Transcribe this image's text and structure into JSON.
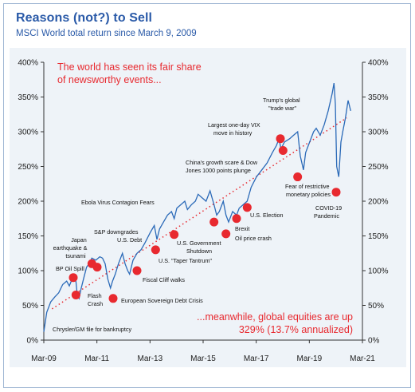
{
  "header": {
    "title": "Reasons (not?) to Sell",
    "subtitle": "MSCI World total return since March 9, 2009"
  },
  "colors": {
    "line": "#2b6ab8",
    "event": "#e8292f",
    "title": "#2a5aa8",
    "trend": "#e8292f",
    "background": "#eef3f8"
  },
  "callouts": {
    "top_line1": "The world has seen its fair share",
    "top_line2": "of newsworthy events...",
    "bottom_line1": "...meanwhile, global equities are up",
    "bottom_line2": "329% (13.7% annualized)"
  },
  "chart_data": {
    "type": "line",
    "title": "Reasons (not?) to Sell",
    "subtitle": "MSCI World total return since March 9, 2009",
    "x_axis": {
      "ticks": [
        "Mar-09",
        "Mar-11",
        "Mar-13",
        "Mar-15",
        "Mar-17",
        "Mar-19",
        "Mar-21"
      ],
      "range": [
        2009.19,
        2021.19
      ]
    },
    "y_axis": {
      "ticks": [
        "0%",
        "50%",
        "100%",
        "150%",
        "200%",
        "250%",
        "300%",
        "350%",
        "400%"
      ],
      "range": [
        0,
        400
      ],
      "secondary_right": true
    },
    "grid": false,
    "trend_line": {
      "style": "dotted",
      "from": [
        2009.5,
        45
      ],
      "to": [
        2020.6,
        320
      ]
    },
    "series": [
      {
        "x": [
          2009.19,
          2009.3,
          2009.45,
          2009.6,
          2009.75,
          2009.9,
          2010.05,
          2010.15,
          2010.28,
          2010.38,
          2010.45,
          2010.52,
          2010.6,
          2010.7,
          2010.8,
          2010.9,
          2011.0,
          2011.15,
          2011.3,
          2011.4,
          2011.5,
          2011.6,
          2011.7,
          2011.78,
          2011.88,
          2012.0,
          2012.15,
          2012.25,
          2012.35,
          2012.42,
          2012.55,
          2012.7,
          2012.85,
          2013.0,
          2013.2,
          2013.35,
          2013.45,
          2013.55,
          2013.7,
          2013.85,
          2014.0,
          2014.1,
          2014.2,
          2014.35,
          2014.5,
          2014.6,
          2014.75,
          2014.9,
          2015.0,
          2015.15,
          2015.3,
          2015.45,
          2015.6,
          2015.7,
          2015.8,
          2015.95,
          2016.05,
          2016.15,
          2016.3,
          2016.45,
          2016.55,
          2016.7,
          2016.85,
          2017.0,
          2017.2,
          2017.4,
          2017.6,
          2017.8,
          2017.95,
          2018.05,
          2018.12,
          2018.25,
          2018.45,
          2018.6,
          2018.75,
          2018.85,
          2018.97,
          2019.05,
          2019.2,
          2019.35,
          2019.45,
          2019.6,
          2019.75,
          2019.9,
          2020.05,
          2020.12,
          2020.17,
          2020.22,
          2020.3,
          2020.38,
          2020.45,
          2020.55,
          2020.65,
          2020.75
        ],
        "y": [
          12,
          40,
          55,
          62,
          68,
          80,
          85,
          78,
          90,
          92,
          65,
          60,
          75,
          90,
          105,
          110,
          118,
          115,
          120,
          118,
          110,
          88,
          75,
          85,
          95,
          110,
          125,
          110,
          100,
          95,
          115,
          125,
          130,
          140,
          155,
          165,
          145,
          160,
          170,
          180,
          185,
          175,
          190,
          195,
          200,
          188,
          195,
          200,
          210,
          205,
          200,
          215,
          195,
          180,
          185,
          200,
          180,
          170,
          185,
          180,
          190,
          195,
          200,
          220,
          235,
          245,
          255,
          270,
          280,
          290,
          275,
          285,
          290,
          295,
          300,
          265,
          245,
          270,
          285,
          300,
          305,
          295,
          310,
          330,
          355,
          370,
          340,
          250,
          235,
          285,
          300,
          320,
          345,
          330
        ]
      }
    ],
    "annotations": [
      {
        "label": "Chrysler/GM file for bankruptcy",
        "x": 2009.3,
        "y": 15,
        "marker": false
      },
      {
        "label": "Japan earthquake & tsunami",
        "x": 2011.2,
        "y": 105,
        "marker": true
      },
      {
        "label": "BP Oil Spill",
        "x": 2010.3,
        "y": 90,
        "marker": true
      },
      {
        "label": "Flash Crash",
        "x": 2010.4,
        "y": 65,
        "marker": true
      },
      {
        "label": "S&P downgrades U.S. Debt",
        "x": 2011.0,
        "y": 110,
        "marker": true
      },
      {
        "label": "European Sovereign Debt Crisis",
        "x": 2011.8,
        "y": 60,
        "marker": true
      },
      {
        "label": "Fiscal Cliff walks",
        "x": 2012.7,
        "y": 100,
        "marker": true
      },
      {
        "label": "Ebola Virus Contagion Fears",
        "x": 2014.1,
        "y": 155,
        "marker": false
      },
      {
        "label": "U.S. \"Taper Tantrum\"",
        "x": 2013.4,
        "y": 130,
        "marker": true
      },
      {
        "label": "U.S. Government Shutdown",
        "x": 2014.1,
        "y": 152,
        "marker": true
      },
      {
        "label": "China's growth scare & Dow Jones 1000 points plunge",
        "x": 2015.6,
        "y": 170,
        "marker": true
      },
      {
        "label": "Oil price crash",
        "x": 2016.05,
        "y": 153,
        "marker": true
      },
      {
        "label": "Brexit",
        "x": 2016.45,
        "y": 175,
        "marker": true
      },
      {
        "label": "U.S. Election",
        "x": 2016.85,
        "y": 191,
        "marker": true
      },
      {
        "label": "Largest one-day VIX move in history",
        "x": 2018.1,
        "y": 290,
        "marker": true
      },
      {
        "label": "Trump's global \"trade war\"",
        "x": 2018.2,
        "y": 273,
        "marker": true
      },
      {
        "label": "Fear of restrictive monetary policies",
        "x": 2018.75,
        "y": 235,
        "marker": true
      },
      {
        "label": "COVID-19 Pandemic",
        "x": 2020.2,
        "y": 213,
        "marker": true
      }
    ]
  }
}
